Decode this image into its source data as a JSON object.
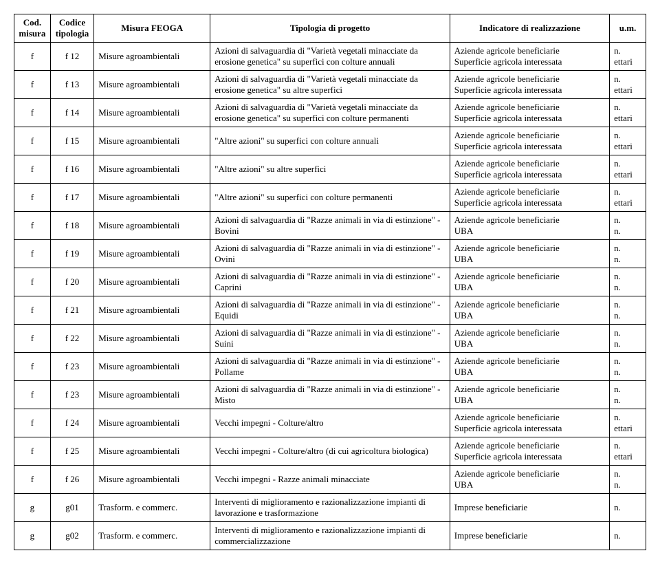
{
  "headers": {
    "col0": "Cod. misura",
    "col1": "Codice tipologia",
    "col2": "Misura FEOGA",
    "col3": "Tipologia di progetto",
    "col4": "Indicatore di realizzazione",
    "col5": "u.m."
  },
  "rows": [
    {
      "c0": "f",
      "c1": "f 12",
      "c2": "Misure agroambientali",
      "c3": "Azioni di salvaguardia di \"Varietà vegetali minacciate da erosione genetica\" su superfici con colture annuali",
      "c4a": "Aziende agricole beneficiarie",
      "c4b": "Superficie agricola interessata",
      "c5a": "n.",
      "c5b": "ettari"
    },
    {
      "c0": "f",
      "c1": "f 13",
      "c2": "Misure agroambientali",
      "c3": "Azioni di salvaguardia di \"Varietà vegetali minacciate da erosione genetica\" su altre superfici",
      "c4a": "Aziende agricole beneficiarie",
      "c4b": "Superficie agricola interessata",
      "c5a": "n.",
      "c5b": "ettari"
    },
    {
      "c0": "f",
      "c1": "f 14",
      "c2": "Misure agroambientali",
      "c3": "Azioni di salvaguardia di \"Varietà vegetali minacciate da erosione genetica\" su superfici con colture permanenti",
      "c4a": "Aziende agricole beneficiarie",
      "c4b": "Superficie agricola interessata",
      "c5a": "n.",
      "c5b": "ettari"
    },
    {
      "c0": "f",
      "c1": "f 15",
      "c2": "Misure agroambientali",
      "c3": "\"Altre azioni\" su superfici con colture annuali",
      "c4a": "Aziende agricole beneficiarie",
      "c4b": "Superficie agricola interessata",
      "c5a": "n.",
      "c5b": "ettari"
    },
    {
      "c0": "f",
      "c1": "f 16",
      "c2": "Misure agroambientali",
      "c3": "\"Altre azioni\" su altre superfici",
      "c4a": "Aziende agricole beneficiarie",
      "c4b": "Superficie agricola interessata",
      "c5a": "n.",
      "c5b": "ettari"
    },
    {
      "c0": "f",
      "c1": "f 17",
      "c2": "Misure agroambientali",
      "c3": "\"Altre azioni\" su superfici con colture permanenti",
      "c4a": "Aziende agricole beneficiarie",
      "c4b": "Superficie agricola interessata",
      "c5a": "n.",
      "c5b": "ettari"
    },
    {
      "c0": "f",
      "c1": "f 18",
      "c2": "Misure agroambientali",
      "c3": "Azioni di salvaguardia di \"Razze animali in via di estinzione\" - Bovini",
      "c4a": "Aziende agricole beneficiarie",
      "c4b": "UBA",
      "c5a": "n.",
      "c5b": "n."
    },
    {
      "c0": "f",
      "c1": "f 19",
      "c2": "Misure agroambientali",
      "c3": "Azioni di salvaguardia di \"Razze animali in via di estinzione\" - Ovini",
      "c4a": "Aziende agricole beneficiarie",
      "c4b": "UBA",
      "c5a": "n.",
      "c5b": "n."
    },
    {
      "c0": "f",
      "c1": "f 20",
      "c2": "Misure agroambientali",
      "c3": "Azioni di salvaguardia di \"Razze animali in via di estinzione\" - Caprini",
      "c4a": "Aziende agricole beneficiarie",
      "c4b": "UBA",
      "c5a": "n.",
      "c5b": "n."
    },
    {
      "c0": "f",
      "c1": "f 21",
      "c2": "Misure agroambientali",
      "c3": "Azioni di salvaguardia di \"Razze animali in via di estinzione\" - Equidi",
      "c4a": "Aziende agricole beneficiarie",
      "c4b": "UBA",
      "c5a": "n.",
      "c5b": "n."
    },
    {
      "c0": "f",
      "c1": "f 22",
      "c2": "Misure agroambientali",
      "c3": "Azioni di salvaguardia di \"Razze animali in via di estinzione\" - Suini",
      "c4a": "Aziende agricole beneficiarie",
      "c4b": "UBA",
      "c5a": "n.",
      "c5b": "n."
    },
    {
      "c0": "f",
      "c1": "f 23",
      "c2": "Misure agroambientali",
      "c3": "Azioni di salvaguardia di \"Razze animali in via di estinzione\" - Pollame",
      "c4a": "Aziende agricole beneficiarie",
      "c4b": "UBA",
      "c5a": "n.",
      "c5b": "n."
    },
    {
      "c0": "f",
      "c1": "f 23",
      "c2": "Misure agroambientali",
      "c3": "Azioni di salvaguardia di \"Razze animali in via di estinzione\" - Misto",
      "c4a": "Aziende agricole beneficiarie",
      "c4b": "UBA",
      "c5a": "n.",
      "c5b": "n."
    },
    {
      "c0": "f",
      "c1": "f 24",
      "c2": "Misure agroambientali",
      "c3": "Vecchi impegni - Colture/altro",
      "c4a": "Aziende agricole beneficiarie",
      "c4b": "Superficie agricola interessata",
      "c5a": "n.",
      "c5b": "ettari"
    },
    {
      "c0": "f",
      "c1": "f 25",
      "c2": "Misure agroambientali",
      "c3": "Vecchi impegni - Colture/altro (di cui agricoltura biologica)",
      "c4a": "Aziende agricole beneficiarie",
      "c4b": "Superficie agricola interessata",
      "c5a": "n.",
      "c5b": "ettari"
    },
    {
      "c0": "f",
      "c1": "f 26",
      "c2": "Misure agroambientali",
      "c3": "Vecchi impegni - Razze animali minacciate",
      "c4a": "Aziende agricole beneficiarie",
      "c4b": "UBA",
      "c5a": "n.",
      "c5b": "n."
    },
    {
      "c0": "g",
      "c1": "g01",
      "c2": "Trasform. e commerc.",
      "c3": "Interventi di miglioramento e razionalizzazione impianti di lavorazione e trasformazione",
      "c4a": "Imprese beneficiarie",
      "c4b": "",
      "c5a": "n.",
      "c5b": ""
    },
    {
      "c0": "g",
      "c1": "g02",
      "c2": "Trasform. e commerc.",
      "c3": "Interventi di miglioramento e razionalizzazione impianti di commercializzazione",
      "c4a": "Imprese beneficiarie",
      "c4b": "",
      "c5a": "n.",
      "c5b": ""
    }
  ]
}
